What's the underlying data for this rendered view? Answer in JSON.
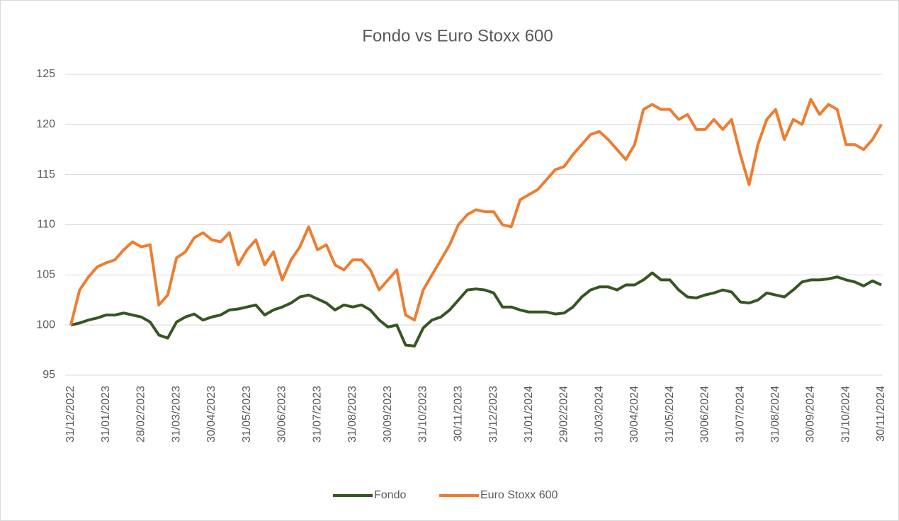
{
  "chart_data": {
    "type": "line",
    "title": "Fondo vs Euro Stoxx 600",
    "categories": [
      "31/12/2022",
      null,
      null,
      null,
      "31/01/2023",
      null,
      null,
      null,
      "28/02/2023",
      null,
      null,
      null,
      "31/03/2023",
      null,
      null,
      null,
      "30/04/2023",
      null,
      null,
      null,
      "31/05/2023",
      null,
      null,
      null,
      "30/06/2023",
      null,
      null,
      null,
      "31/07/2023",
      null,
      null,
      null,
      "31/08/2023",
      null,
      null,
      null,
      "30/09/2023",
      null,
      null,
      null,
      "31/10/2023",
      null,
      null,
      null,
      "30/11/2023",
      null,
      null,
      null,
      "31/12/2023",
      null,
      null,
      null,
      "31/01/2024",
      null,
      null,
      null,
      "29/02/2024",
      null,
      null,
      null,
      "31/03/2024",
      null,
      null,
      null,
      "30/04/2024",
      null,
      null,
      null,
      "31/05/2024",
      null,
      null,
      null,
      "30/06/2024",
      null,
      null,
      null,
      "31/07/2024",
      null,
      null,
      null,
      "31/08/2024",
      null,
      null,
      null,
      "30/09/2024",
      null,
      null,
      null,
      "31/10/2024",
      null,
      null,
      null,
      "30/11/2024"
    ],
    "series": [
      {
        "name": "Fondo",
        "color": "#375623",
        "values": [
          100,
          100.2,
          100.5,
          100.7,
          101,
          101,
          101.2,
          101,
          100.8,
          100.3,
          99,
          98.7,
          100.3,
          100.8,
          101.1,
          100.5,
          100.8,
          101,
          101.5,
          101.6,
          101.8,
          102,
          101,
          101.5,
          101.8,
          102.2,
          102.8,
          103,
          102.6,
          102.2,
          101.5,
          102,
          101.8,
          102,
          101.5,
          100.5,
          99.8,
          100,
          98,
          97.9,
          99.7,
          100.5,
          100.8,
          101.5,
          102.5,
          103.5,
          103.6,
          103.5,
          103.2,
          101.8,
          101.8,
          101.5,
          101.3,
          101.3,
          101.3,
          101.1,
          101.2,
          101.8,
          102.8,
          103.5,
          103.8,
          103.8,
          103.5,
          104,
          104,
          104.5,
          105.2,
          104.5,
          104.5,
          103.5,
          102.8,
          102.7,
          103,
          103.2,
          103.5,
          103.3,
          102.3,
          102.2,
          102.5,
          103.2,
          103,
          102.8,
          103.5,
          104.3,
          104.5,
          104.5,
          104.6,
          104.8,
          104.5,
          104.3,
          103.9,
          104.4,
          104
        ]
      },
      {
        "name": "Euro Stoxx 600",
        "color": "#ED7D31",
        "values": [
          100,
          103.5,
          104.8,
          105.8,
          106.2,
          106.5,
          107.5,
          108.3,
          107.8,
          108,
          102,
          103,
          106.7,
          107.3,
          108.7,
          109.2,
          108.5,
          108.3,
          109.2,
          106,
          107.5,
          108.5,
          106,
          107.3,
          104.5,
          106.5,
          107.8,
          109.8,
          107.5,
          108,
          106,
          105.5,
          106.5,
          106.5,
          105.5,
          103.5,
          104.5,
          105.5,
          101,
          100.5,
          103.5,
          105,
          106.5,
          108,
          110,
          111,
          111.5,
          111.3,
          111.3,
          110,
          109.8,
          112.5,
          113,
          113.5,
          114.5,
          115.5,
          115.8,
          117,
          118,
          119,
          119.3,
          118.5,
          117.5,
          116.5,
          118,
          121.5,
          122,
          121.5,
          121.5,
          120.5,
          121,
          119.5,
          119.5,
          120.5,
          119.5,
          120.5,
          117,
          114,
          118,
          120.5,
          121.5,
          118.5,
          120.5,
          120,
          122.5,
          121,
          122,
          121.5,
          118,
          118,
          117.5,
          118.5,
          120
        ]
      }
    ],
    "ylim": [
      95,
      125
    ],
    "yticks": [
      95,
      100,
      105,
      110,
      115,
      120,
      125
    ],
    "grid": true,
    "legend": "bottom"
  }
}
